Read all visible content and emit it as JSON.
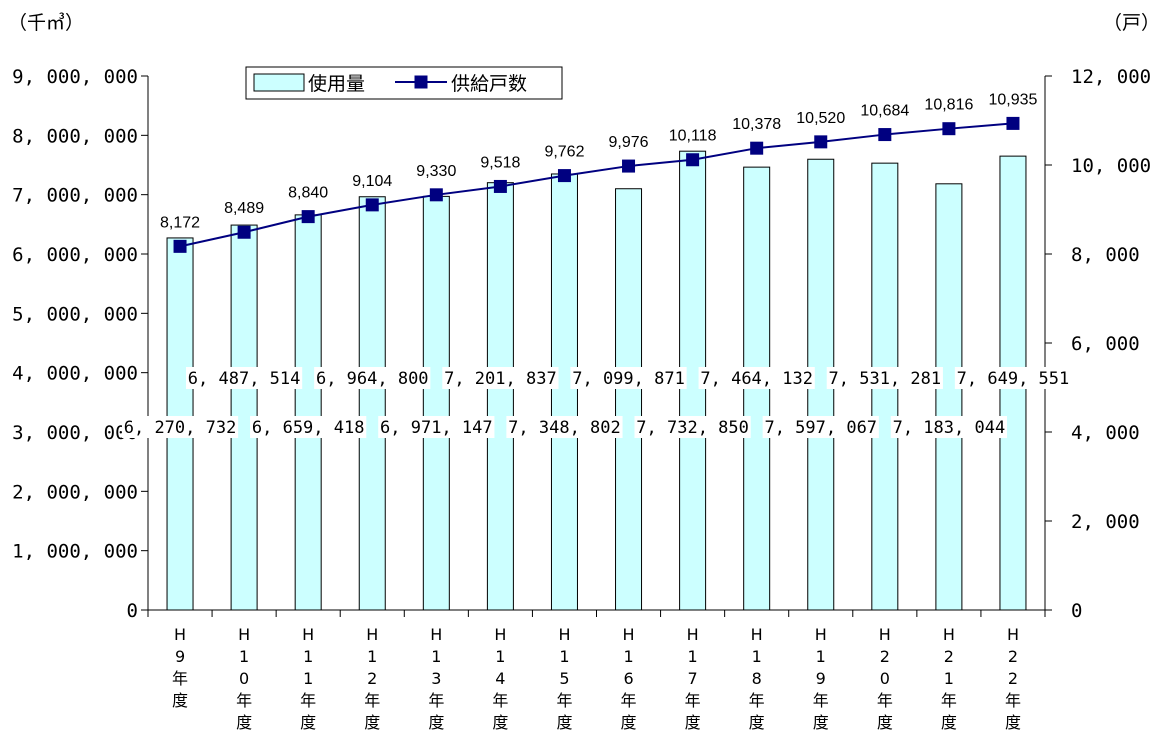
{
  "chart_data": {
    "type": "bar+line",
    "categories": [
      "H9年度",
      "H10年度",
      "H11年度",
      "H12年度",
      "H13年度",
      "H14年度",
      "H15年度",
      "H16年度",
      "H17年度",
      "H18年度",
      "H19年度",
      "H20年度",
      "H21年度",
      "H22年度"
    ],
    "category_glyphs": [
      [
        "H",
        "9",
        "年",
        "度"
      ],
      [
        "H",
        "1",
        "0",
        "年",
        "度"
      ],
      [
        "H",
        "1",
        "1",
        "年",
        "度"
      ],
      [
        "H",
        "1",
        "2",
        "年",
        "度"
      ],
      [
        "H",
        "1",
        "3",
        "年",
        "度"
      ],
      [
        "H",
        "1",
        "4",
        "年",
        "度"
      ],
      [
        "H",
        "1",
        "5",
        "年",
        "度"
      ],
      [
        "H",
        "1",
        "6",
        "年",
        "度"
      ],
      [
        "H",
        "1",
        "7",
        "年",
        "度"
      ],
      [
        "H",
        "1",
        "8",
        "年",
        "度"
      ],
      [
        "H",
        "1",
        "9",
        "年",
        "度"
      ],
      [
        "H",
        "2",
        "0",
        "年",
        "度"
      ],
      [
        "H",
        "2",
        "1",
        "年",
        "度"
      ],
      [
        "H",
        "2",
        "2",
        "年",
        "度"
      ]
    ],
    "series": [
      {
        "name": "使用量",
        "type": "bar",
        "axis": "left",
        "color": "#ccffff",
        "values": [
          6270732,
          6487514,
          6659418,
          6964800,
          6971147,
          7201837,
          7348802,
          7099871,
          7732850,
          7464132,
          7597067,
          7531281,
          7183044,
          7649551
        ],
        "labels": [
          "6, 270, 732",
          "6, 487, 514",
          "6, 659, 418",
          "6, 964, 800",
          "6, 971, 147",
          "7, 201, 837",
          "7, 348, 802",
          "7, 099, 871",
          "7, 732, 850",
          "7, 464, 132",
          "7, 597, 067",
          "7, 531, 281",
          "7, 183, 044",
          "7, 649, 551"
        ]
      },
      {
        "name": "供給戸数",
        "type": "line",
        "axis": "right",
        "color": "#000080",
        "values": [
          8172,
          8489,
          8840,
          9104,
          9330,
          9518,
          9762,
          9976,
          10118,
          10378,
          10520,
          10684,
          10816,
          10935
        ],
        "labels": [
          "8,172",
          "8,489",
          "8,840",
          "9,104",
          "9,330",
          "9,518",
          "9,762",
          "9,976",
          "10,118",
          "10,378",
          "10,520",
          "10,684",
          "10,816",
          "10,935"
        ]
      }
    ],
    "y_left": {
      "unit": "（千㎥）",
      "ylim": [
        0,
        9000000
      ],
      "ticks": [
        0,
        1000000,
        2000000,
        3000000,
        4000000,
        5000000,
        6000000,
        7000000,
        8000000,
        9000000
      ],
      "tick_labels": [
        "0",
        "1, 000, 000",
        "2, 000, 000",
        "3, 000, 000",
        "4, 000, 000",
        "5, 000, 000",
        "6, 000, 000",
        "7, 000, 000",
        "8, 000, 000",
        "9, 000, 000"
      ]
    },
    "y_right": {
      "unit": "（戸）",
      "ylim": [
        0,
        12000
      ],
      "ticks": [
        0,
        2000,
        4000,
        6000,
        8000,
        10000,
        12000
      ],
      "tick_labels": [
        "0",
        "2, 000",
        "4, 000",
        "6, 000",
        "8, 000",
        "10, 000",
        "12, 000"
      ]
    },
    "legend": {
      "position": "top-left",
      "items": [
        "使用量",
        "供給戸数"
      ]
    },
    "grid": false
  }
}
